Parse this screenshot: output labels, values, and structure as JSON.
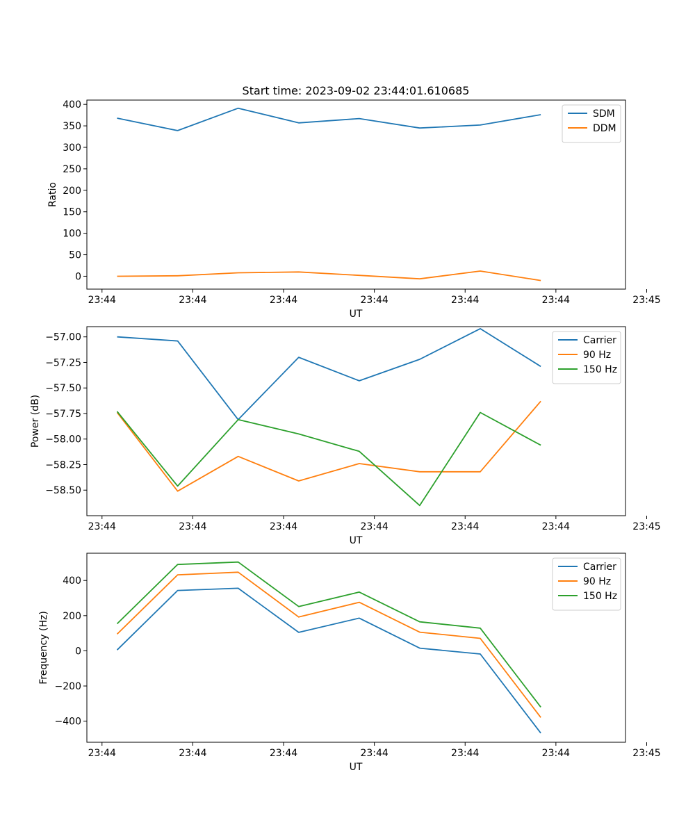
{
  "colors": {
    "series1": "#1f77b4",
    "series2": "#ff7f0e",
    "series3": "#2ca02c"
  },
  "chart_data": [
    {
      "type": "line",
      "title": "Start time: 2023-09-02 23:44:01.610685",
      "xlabel": "UT",
      "ylabel": "Ratio",
      "x": [
        1,
        2,
        3,
        4,
        5,
        6,
        7,
        8
      ],
      "xlim": [
        0.5,
        9.4
      ],
      "x_ticks": [
        0.75,
        2.25,
        3.75,
        5.25,
        6.75,
        8.25,
        9.75
      ],
      "x_tick_labels": [
        "23:44",
        "23:44",
        "23:44",
        "23:44",
        "23:44",
        "23:44",
        "23:45"
      ],
      "ylim": [
        -30,
        410
      ],
      "y_ticks": [
        0,
        50,
        100,
        150,
        200,
        250,
        300,
        350,
        400
      ],
      "y_tick_labels": [
        "0",
        "50",
        "100",
        "150",
        "200",
        "250",
        "300",
        "350",
        "400"
      ],
      "legend": "top-right",
      "series": [
        {
          "name": "SDM",
          "color": "#1f77b4",
          "values": [
            368,
            339,
            391,
            357,
            367,
            345,
            352,
            376
          ]
        },
        {
          "name": "DDM",
          "color": "#ff7f0e",
          "values": [
            0,
            1,
            8,
            10,
            2,
            -6,
            12,
            -10
          ]
        }
      ]
    },
    {
      "type": "line",
      "title": "",
      "xlabel": "UT",
      "ylabel": "Power (dB)",
      "x": [
        1,
        2,
        3,
        4,
        5,
        6,
        7,
        8
      ],
      "xlim": [
        0.5,
        9.4
      ],
      "x_ticks": [
        0.75,
        2.25,
        3.75,
        5.25,
        6.75,
        8.25,
        9.75
      ],
      "x_tick_labels": [
        "23:44",
        "23:44",
        "23:44",
        "23:44",
        "23:44",
        "23:44",
        "23:45"
      ],
      "ylim": [
        -58.75,
        -56.9
      ],
      "y_ticks": [
        -57.0,
        -57.25,
        -57.5,
        -57.75,
        -58.0,
        -58.25,
        -58.5
      ],
      "y_tick_labels": [
        "−57.00",
        "−57.25",
        "−57.50",
        "−57.75",
        "−58.00",
        "−58.25",
        "−58.50"
      ],
      "legend": "top-right",
      "series": [
        {
          "name": "Carrier",
          "color": "#1f77b4",
          "values": [
            -57.0,
            -57.04,
            -57.81,
            -57.2,
            -57.43,
            -57.22,
            -56.92,
            -57.29
          ]
        },
        {
          "name": "90 Hz",
          "color": "#ff7f0e",
          "values": [
            -57.74,
            -58.51,
            -58.17,
            -58.41,
            -58.24,
            -58.32,
            -58.32,
            -57.63
          ]
        },
        {
          "name": "150 Hz",
          "color": "#2ca02c",
          "values": [
            -57.73,
            -58.46,
            -57.81,
            -57.95,
            -58.12,
            -58.65,
            -57.74,
            -58.06
          ]
        }
      ]
    },
    {
      "type": "line",
      "title": "",
      "xlabel": "UT",
      "ylabel": "Frequency (Hz)",
      "x": [
        1,
        2,
        3,
        4,
        5,
        6,
        7,
        8
      ],
      "xlim": [
        0.5,
        9.4
      ],
      "x_ticks": [
        0.75,
        2.25,
        3.75,
        5.25,
        6.75,
        8.25,
        9.75
      ],
      "x_tick_labels": [
        "23:44",
        "23:44",
        "23:44",
        "23:44",
        "23:44",
        "23:44",
        "23:45"
      ],
      "ylim": [
        -520,
        555
      ],
      "y_ticks": [
        400,
        200,
        0,
        -200,
        -400
      ],
      "y_tick_labels": [
        "400",
        "200",
        "0",
        "−200",
        "−400"
      ],
      "legend": "top-right",
      "series": [
        {
          "name": "Carrier",
          "color": "#1f77b4",
          "values": [
            5,
            343,
            356,
            105,
            186,
            15,
            -18,
            -468
          ]
        },
        {
          "name": "90 Hz",
          "color": "#ff7f0e",
          "values": [
            95,
            432,
            447,
            192,
            276,
            106,
            71,
            -379
          ]
        },
        {
          "name": "150 Hz",
          "color": "#2ca02c",
          "values": [
            154,
            491,
            505,
            252,
            334,
            165,
            129,
            -320
          ]
        }
      ]
    }
  ]
}
